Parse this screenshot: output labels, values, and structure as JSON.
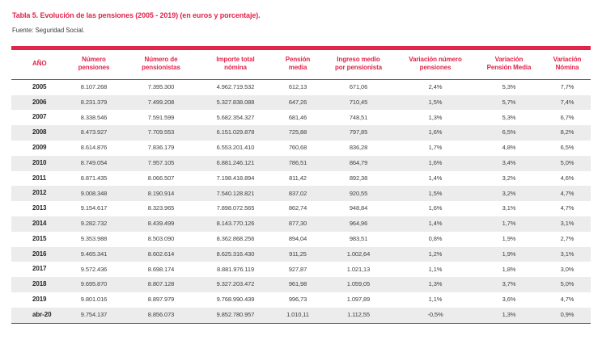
{
  "title": "Tabla 5. Evolución de las pensiones (2005 - 2019) (en euros y porcentaje).",
  "source": "Fuente: Seguridad Social.",
  "colors": {
    "accent_red": "#e2234a",
    "row_alt_gray": "#ececec",
    "body_text": "#3f3f3e"
  },
  "table": {
    "columns": [
      "AÑO",
      "Número\npensiones",
      "Número de\npensionistas",
      "Importe total\nnómina",
      "Pensión\nmedia",
      "Ingreso medio\npor pensionista",
      "Variación número\npensiones",
      "Variación\nPensión Media",
      "Variación\nNómina"
    ],
    "rows": [
      {
        "year": "2005",
        "values": [
          "8.107.268",
          "7.395.300",
          "4.962.719.532",
          "612,13",
          "671,06",
          "2,4%",
          "5,3%",
          "7,7%"
        ]
      },
      {
        "year": "2006",
        "values": [
          "8.231.379",
          "7.499.208",
          "5.327.838.088",
          "647,26",
          "710,45",
          "1,5%",
          "5,7%",
          "7,4%"
        ]
      },
      {
        "year": "2007",
        "values": [
          "8.338.546",
          "7.591.599",
          "5.682.354.327",
          "681,46",
          "748,51",
          "1,3%",
          "5,3%",
          "6,7%"
        ]
      },
      {
        "year": "2008",
        "values": [
          "8.473.927",
          "7.709.553",
          "6.151.029.878",
          "725,88",
          "797,85",
          "1,6%",
          "6,5%",
          "8,2%"
        ]
      },
      {
        "year": "2009",
        "values": [
          "8.614.876",
          "7.836.179",
          "6.553.201.410",
          "760,68",
          "836,28",
          "1,7%",
          "4,8%",
          "6,5%"
        ]
      },
      {
        "year": "2010",
        "values": [
          "8.749.054",
          "7.957.105",
          "6.881.246.121",
          "786,51",
          "864,79",
          "1,6%",
          "3,4%",
          "5,0%"
        ]
      },
      {
        "year": "2011",
        "values": [
          "8.871.435",
          "8.066.507",
          "7.198.418.894",
          "811,42",
          "892,38",
          "1,4%",
          "3,2%",
          "4,6%"
        ]
      },
      {
        "year": "2012",
        "values": [
          "9.008.348",
          "8.190.914",
          "7.540.128.821",
          "837,02",
          "920,55",
          "1,5%",
          "3,2%",
          "4,7%"
        ]
      },
      {
        "year": "2013",
        "values": [
          "9.154.617",
          "8.323.965",
          "7.898.072.565",
          "862,74",
          "948,84",
          "1,6%",
          "3,1%",
          "4,7%"
        ]
      },
      {
        "year": "2014",
        "values": [
          "9.282.732",
          "8.439.499",
          "8.143.770.126",
          "877,30",
          "964,96",
          "1,4%",
          "1,7%",
          "3,1%"
        ]
      },
      {
        "year": "2015",
        "values": [
          "9.353.988",
          "8.503.090",
          "8.362.868.256",
          "894,04",
          "983,51",
          "0,8%",
          "1,9%",
          "2,7%"
        ]
      },
      {
        "year": "2016",
        "values": [
          "9.465.341",
          "8.602.614",
          "8.625.316.430",
          "911,25",
          "1.002,64",
          "1,2%",
          "1,9%",
          "3,1%"
        ]
      },
      {
        "year": "2017",
        "values": [
          "9.572.436",
          "8.698.174",
          "8.881.976.119",
          "927,87",
          "1.021,13",
          "1,1%",
          "1,8%",
          "3,0%"
        ]
      },
      {
        "year": "2018",
        "values": [
          "9.695.870",
          "8.807.128",
          "9.327.203.472",
          "961,98",
          "1.059,05",
          "1,3%",
          "3,7%",
          "5,0%"
        ]
      },
      {
        "year": "2019",
        "values": [
          "9.801.016",
          "8.897.979",
          "9.768.990.439",
          "996,73",
          "1.097,89",
          "1,1%",
          "3,6%",
          "4,7%"
        ]
      },
      {
        "year": "abr-20",
        "values": [
          "9.754.137",
          "8.856.073",
          "9.852.780.957",
          "1.010,11",
          "1.112,55",
          "-0,5%",
          "1,3%",
          "0,9%"
        ]
      }
    ]
  }
}
